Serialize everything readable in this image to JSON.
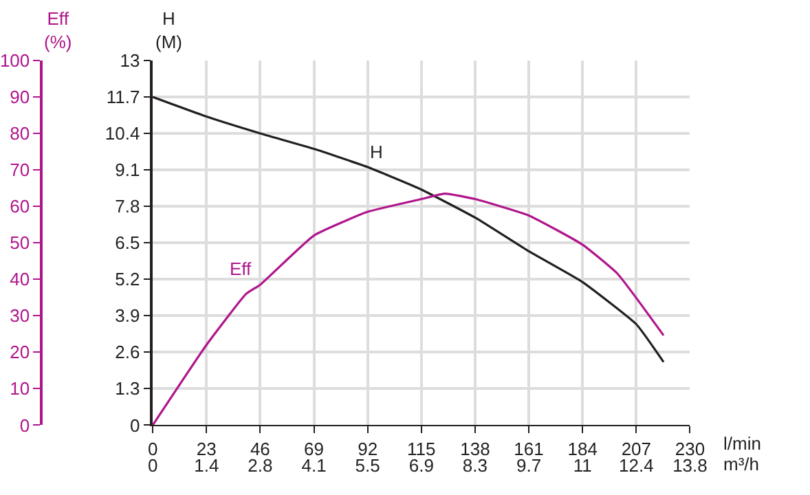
{
  "chart_data": {
    "type": "line",
    "xlabel": "l/min",
    "x2label": "m³/h",
    "ylabel": "Eff\n(%)",
    "y2label": "H\n(M)",
    "x": [
      0,
      23,
      40,
      46,
      69,
      92,
      115,
      125,
      138,
      161,
      184,
      199,
      218.7
    ],
    "series": [
      {
        "name": "H",
        "color": "#231f20",
        "axis": "y2",
        "x": [
          0,
          23,
          46,
          69,
          92,
          115,
          138,
          161,
          184,
          207,
          218.7
        ],
        "values": [
          11.7,
          11.0,
          10.4,
          9.85,
          9.2,
          8.4,
          7.4,
          6.2,
          5.1,
          3.6,
          2.25
        ]
      },
      {
        "name": "Eff",
        "color": "#b0158c",
        "values": [
          0,
          22,
          36,
          38.5,
          52,
          58.5,
          62,
          63.5,
          62,
          57.5,
          49.5,
          41.5,
          24.6
        ]
      }
    ],
    "xlim": [
      0,
      230
    ],
    "xticks": [
      0,
      23,
      46,
      69,
      92,
      115,
      138,
      161,
      184,
      207,
      230
    ],
    "x2lim": [
      0,
      13.8
    ],
    "x2ticks": [
      0,
      {
        "value": 1.38,
        "label": "1.4"
      },
      {
        "value": 2.76,
        "label": "2.8"
      },
      {
        "value": 4.14,
        "label": "4.1"
      },
      {
        "value": 5.52,
        "label": "5.5"
      },
      6.9,
      {
        "value": 8.28,
        "label": "8.3"
      },
      {
        "value": 9.66,
        "label": "9.7"
      },
      {
        "value": 11.04,
        "label": "11"
      },
      {
        "value": 12.42,
        "label": "12.4"
      },
      13.8
    ],
    "ylim": [
      0,
      100
    ],
    "yticks": [
      0,
      10,
      20,
      30,
      40,
      50,
      60,
      70,
      80,
      90,
      100
    ],
    "y2lim": [
      0,
      13
    ],
    "y2ticks": [
      0,
      1.3,
      2.6,
      3.9,
      5.2,
      6.5,
      7.8,
      9.1,
      10.4,
      11.7,
      13
    ],
    "grid": true,
    "legend": false,
    "marker": "none",
    "line_style": "solid"
  }
}
